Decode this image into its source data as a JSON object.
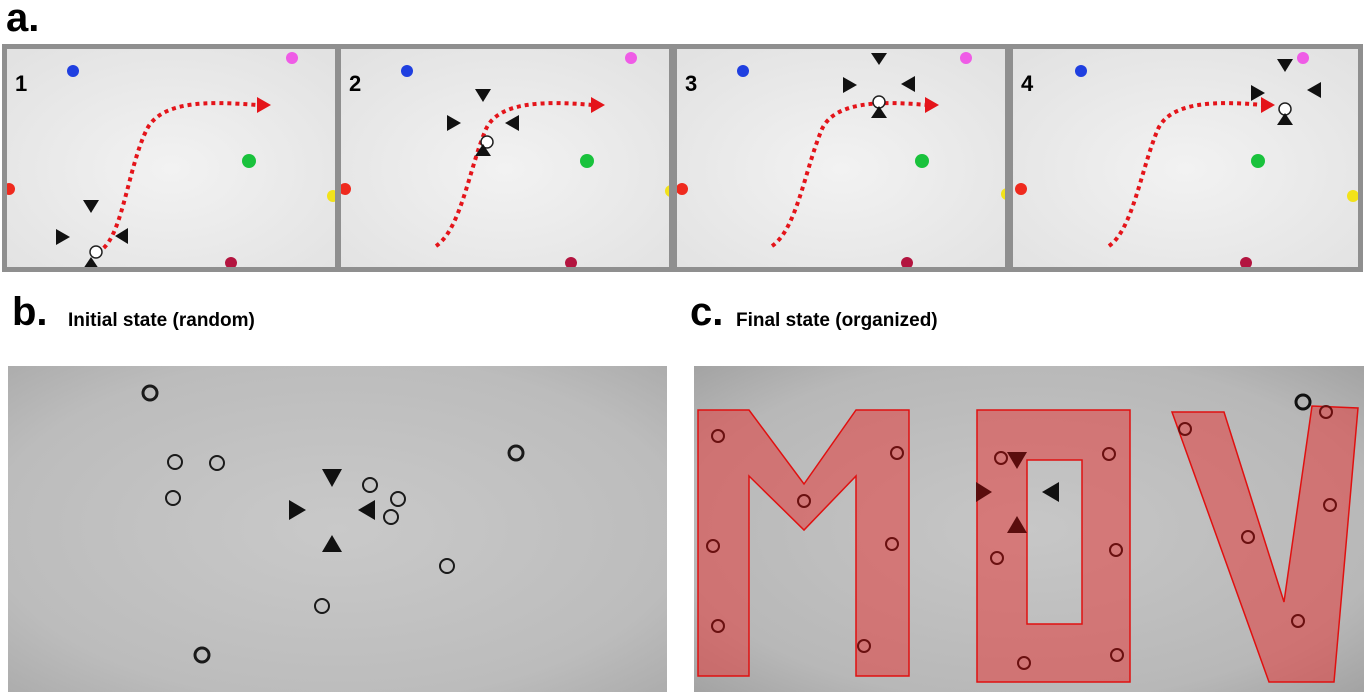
{
  "panel_a": {
    "label": "a.",
    "frames": [
      {
        "number": "1"
      },
      {
        "number": "2"
      },
      {
        "number": "3"
      },
      {
        "number": "4"
      }
    ],
    "marker_colors": {
      "blue": "#1f3fe0",
      "magenta": "#ef5ce6",
      "green": "#19c23c",
      "red": "#ef2a1e",
      "yellow": "#f2e21a",
      "crimson": "#b3143f"
    },
    "trajectory_color": "#e4141a"
  },
  "panel_b": {
    "label": "b.",
    "title": "Initial state (random)"
  },
  "panel_c": {
    "label": "c.",
    "title": "Final state (organized)",
    "overlay_color": "#e23a3a"
  }
}
